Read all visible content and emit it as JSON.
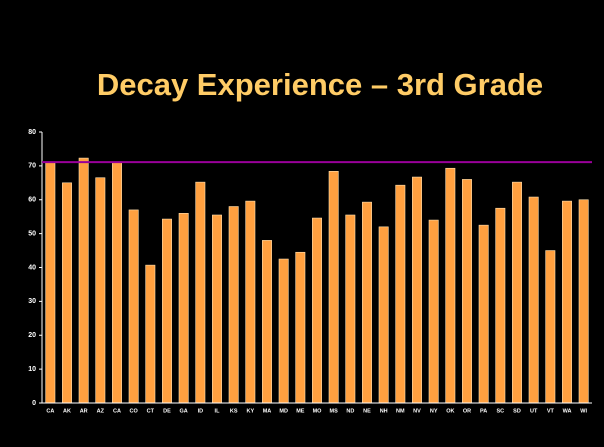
{
  "chart_data": {
    "type": "bar",
    "title": "Decay Experience – 3rd Grade",
    "categories": [
      "CA",
      "AK",
      "AR",
      "AZ",
      "CA",
      "CO",
      "CT",
      "DE",
      "GA",
      "ID",
      "IL",
      "KS",
      "KY",
      "MA",
      "MD",
      "ME",
      "MO",
      "MS",
      "ND",
      "NE",
      "NH",
      "NM",
      "NV",
      "NY",
      "OK",
      "OR",
      "PA",
      "SC",
      "SD",
      "UT",
      "VT",
      "WA",
      "WI"
    ],
    "values": [
      71,
      65,
      72.3,
      66.5,
      71,
      57,
      40.7,
      54.3,
      56,
      65.2,
      55.5,
      58,
      59.6,
      48,
      42.5,
      44.5,
      54.6,
      68.4,
      55.5,
      59.3,
      52,
      64.3,
      66.7,
      54,
      69.3,
      66,
      52.5,
      57.5,
      65.2,
      60.8,
      45,
      59.6,
      60
    ],
    "color": "#ffa040",
    "ylim": [
      0,
      80
    ],
    "yticks": [
      0,
      10,
      20,
      30,
      40,
      50,
      60,
      70,
      80
    ],
    "reference_line": {
      "value": 71.1,
      "color": "#990099"
    }
  }
}
